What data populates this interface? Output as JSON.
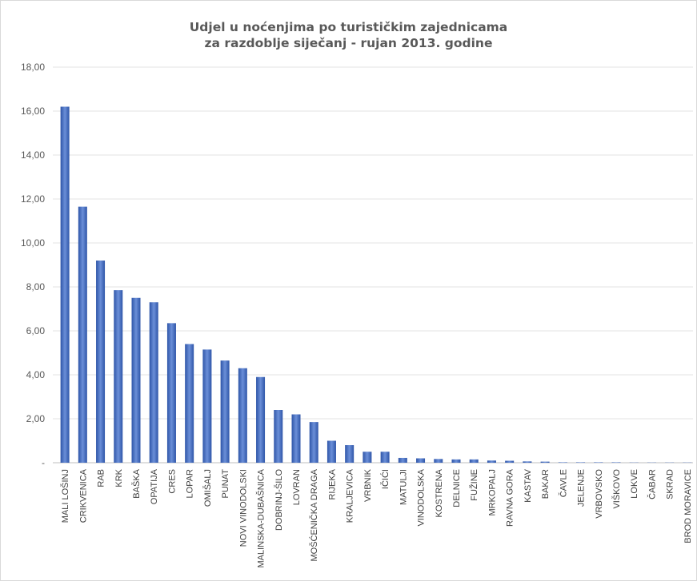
{
  "chart_data": {
    "type": "bar",
    "title": [
      "Udjel u noćenjima po turističkim zajednicama",
      "za razdoblje siječanj - rujan 2013. godine"
    ],
    "ylim": [
      0,
      18
    ],
    "yticks": [
      "-",
      "2,00",
      "4,00",
      "6,00",
      "8,00",
      "10,00",
      "12,00",
      "14,00",
      "16,00",
      "18,00"
    ],
    "grid": true,
    "color": "#4472C4",
    "categories": [
      "MALI LOŠINJ",
      "CRIKVENICA",
      "RAB",
      "KRK",
      "BAŠKA",
      "OPATIJA",
      "CRES",
      "LOPAR",
      "OMIŠALJ",
      "PUNAT",
      "NOVI VINODOLSKI",
      "MALINSKA-DUBAŠNICA",
      "DOBRINJ-ŠILO",
      "LOVRAN",
      "MOŠĆENIČKA DRAGA",
      "RIJEKA",
      "KRALJEVICA",
      "VRBNIK",
      "IČIĆI",
      "MATULJI",
      "VINODOLSKA",
      "KOSTRENA",
      "DELNICE",
      "FUŽINE",
      "MRKOPALJ",
      "RAVNA GORA",
      "KASTAV",
      "BAKAR",
      "ČAVLE",
      "JELENJE",
      "VRBOVSKO",
      "VIŠKOVO",
      "LOKVE",
      "ČABAR",
      "SKRAD",
      "BROD MORAVICE"
    ],
    "values": [
      16.2,
      11.65,
      9.2,
      7.85,
      7.5,
      7.3,
      6.35,
      5.4,
      5.15,
      4.65,
      4.3,
      3.9,
      2.4,
      2.2,
      1.85,
      1.0,
      0.8,
      0.5,
      0.5,
      0.22,
      0.2,
      0.17,
      0.15,
      0.15,
      0.1,
      0.09,
      0.06,
      0.05,
      0.02,
      0.02,
      0.02,
      0.02,
      0.01,
      0.01,
      0.01,
      0.01
    ]
  }
}
